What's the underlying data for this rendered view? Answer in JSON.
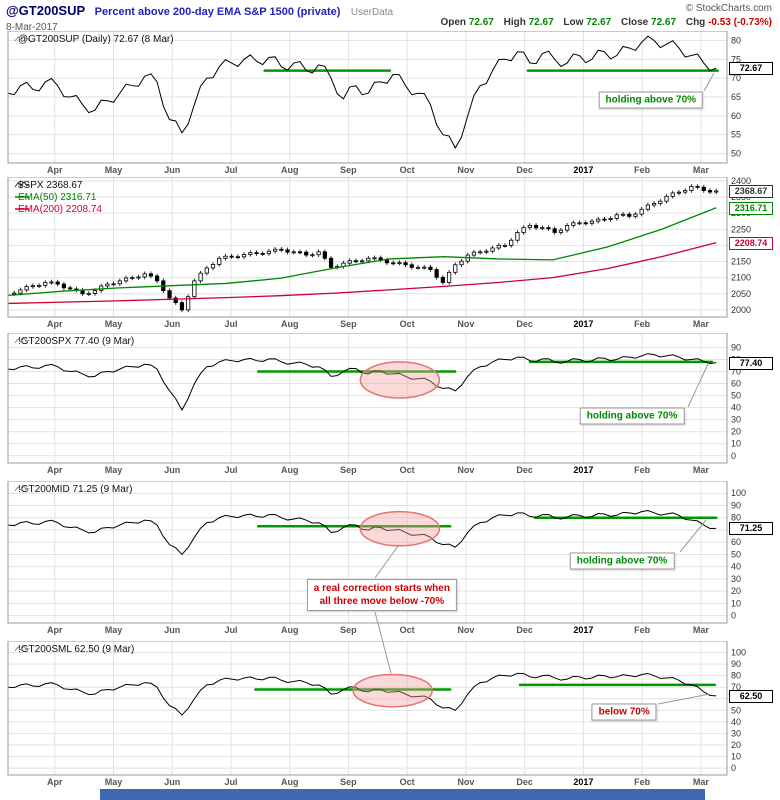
{
  "header": {
    "symbol": "@GT200SUP",
    "description": "Percent above 200-day EMA S&P 1500 (private)",
    "source_tag": "UserData",
    "copyright": "© StockCharts.com",
    "date": "8-Mar-2017",
    "quote": {
      "open_label": "Open",
      "open": "72.67",
      "high_label": "High",
      "high": "72.67",
      "low_label": "Low",
      "low": "72.67",
      "close_label": "Close",
      "close": "72.67",
      "chg_label": "Chg",
      "chg": "-0.53 (-0.73%)"
    }
  },
  "x_axis": {
    "labels": [
      "Apr",
      "May",
      "Jun",
      "Jul",
      "Aug",
      "Sep",
      "Oct",
      "Nov",
      "Dec",
      "2017",
      "Feb",
      "Mar"
    ],
    "bold_index": 9
  },
  "colors": {
    "support_green": "#009900",
    "anno_green": "#008800",
    "anno_red": "#cc0000",
    "ema50_green": "#008800",
    "ema200_red": "#cc0033",
    "series_black": "#000000",
    "grid": "#e2e2e2",
    "border": "#999999",
    "ellipse_fill": "#f4a0a0",
    "ellipse_stroke": "#e57373",
    "scrollbar_blue": "#3e68b2"
  },
  "chart_data": [
    {
      "type": "line",
      "title": "@GT200SUP (Daily) 72.67 (8 Mar)",
      "ylim": [
        47.5,
        82.5
      ],
      "yticks": [
        50,
        55,
        60,
        65,
        70,
        75,
        80
      ],
      "values": [
        66,
        68,
        67,
        69,
        68,
        65,
        63,
        61.5,
        64,
        66,
        68,
        70.5,
        69,
        59,
        55.5,
        63,
        70,
        73,
        74,
        75,
        74.5,
        75.5,
        73,
        74,
        72,
        73.5,
        70,
        64.5,
        68,
        66,
        69,
        71,
        68,
        66,
        63,
        55,
        51.5,
        60,
        68,
        72,
        75,
        77,
        74,
        76.5,
        75,
        74,
        76,
        75,
        77,
        76,
        78,
        79.5,
        80,
        79,
        78,
        76,
        74,
        72.67
      ],
      "support_lines": [
        {
          "x1": 0.357,
          "x2": 0.531,
          "y": 72
        },
        {
          "x1": 0.723,
          "x2": 0.987,
          "y": 72
        }
      ],
      "last_labels": [
        {
          "text": "72.67",
          "value": 72.67,
          "color": "#000000"
        }
      ],
      "annotations": [
        {
          "text": "holding above 70%",
          "color": "#008800",
          "fx": 0.894,
          "fy": 0.52
        }
      ]
    },
    {
      "type": "candle",
      "title": "$SPX 2368.67",
      "legend": [
        "EMA(50) 2316.71",
        "EMA(200) 2208.74"
      ],
      "ylim": [
        1978,
        2412
      ],
      "yticks": [
        2000,
        2050,
        2100,
        2150,
        2200,
        2250,
        2300,
        2350,
        2400
      ],
      "close": [
        2050,
        2062,
        2075,
        2085,
        2080,
        2065,
        2050,
        2060,
        2080,
        2090,
        2100,
        2112,
        2090,
        2037,
        2000,
        2090,
        2130,
        2160,
        2165,
        2172,
        2175,
        2182,
        2186,
        2180,
        2170,
        2180,
        2132,
        2145,
        2152,
        2160,
        2155,
        2145,
        2140,
        2132,
        2125,
        2085,
        2140,
        2170,
        2180,
        2192,
        2200,
        2240,
        2262,
        2255,
        2240,
        2262,
        2270,
        2275,
        2280,
        2295,
        2290,
        2312,
        2330,
        2352,
        2365,
        2383,
        2370,
        2368.67
      ],
      "ema50": [
        2045,
        2058,
        2068,
        2075,
        2082,
        2098,
        2130,
        2158,
        2165,
        2158,
        2155,
        2195,
        2250,
        2316.71
      ],
      "ema200": [
        2020,
        2024,
        2028,
        2033,
        2038,
        2044,
        2052,
        2062,
        2073,
        2085,
        2100,
        2128,
        2165,
        2208.74
      ],
      "last_labels": [
        {
          "text": "2368.67",
          "value": 2368.67,
          "color": "#333333"
        },
        {
          "text": "2316.71",
          "value": 2316.71,
          "color": "#008800"
        },
        {
          "text": "2208.74",
          "value": 2208.74,
          "color": "#cc0033"
        }
      ],
      "annotations": []
    },
    {
      "type": "line",
      "title": "!GT200SPX 77.40 (9 Mar)",
      "ylim": [
        -6,
        102
      ],
      "yticks": [
        0,
        10,
        20,
        30,
        40,
        50,
        60,
        70,
        80,
        90
      ],
      "values": [
        72,
        74,
        73,
        75,
        74,
        70,
        68,
        66,
        70,
        72,
        74,
        76,
        72,
        54,
        38,
        60,
        74,
        78,
        79,
        80,
        79,
        80.5,
        78,
        77,
        76,
        74,
        66,
        70,
        72.5,
        68,
        70.5,
        68,
        66,
        64,
        62,
        56,
        54,
        66,
        74,
        78,
        80,
        82,
        79,
        80.5,
        78,
        78.5,
        80,
        79,
        81,
        80,
        82,
        83,
        84,
        83,
        82,
        80,
        78.5,
        77.4
      ],
      "support_lines": [
        {
          "x1": 0.348,
          "x2": 0.622,
          "y": 70
        },
        {
          "x1": 0.726,
          "x2": 0.979,
          "y": 78
        }
      ],
      "ellipse": {
        "cx": 0.545,
        "cy": 63,
        "rx": 0.055,
        "ry": 15
      },
      "last_labels": [
        {
          "text": "77.40",
          "value": 77.4,
          "color": "#000000"
        }
      ],
      "annotations": [
        {
          "text": "holding above 70%",
          "color": "#008800",
          "fx": 0.868,
          "fy": 0.64
        }
      ]
    },
    {
      "type": "line",
      "title": "!GT200MID 71.25 (9 Mar)",
      "ylim": [
        -6,
        110
      ],
      "yticks": [
        0,
        10,
        20,
        30,
        40,
        50,
        60,
        70,
        80,
        90,
        100
      ],
      "values": [
        74,
        76,
        75,
        77,
        76,
        72,
        70,
        68,
        72,
        74,
        76,
        78,
        74,
        58,
        50,
        64,
        76,
        80,
        81,
        82,
        81,
        82.5,
        80,
        79,
        78,
        76,
        68,
        72,
        74,
        70,
        72,
        70,
        68,
        66,
        64,
        58,
        56,
        68,
        76,
        80,
        82,
        84,
        81,
        82.5,
        80,
        80.5,
        82,
        81,
        83,
        82,
        84,
        85,
        84,
        83,
        82,
        78,
        74,
        71.25
      ],
      "support_lines": [
        {
          "x1": 0.348,
          "x2": 0.615,
          "y": 73
        },
        {
          "x1": 0.733,
          "x2": 0.985,
          "y": 80
        }
      ],
      "ellipse": {
        "cx": 0.545,
        "cy": 71,
        "rx": 0.055,
        "ry": 14
      },
      "last_labels": [
        {
          "text": "71.25",
          "value": 71.25,
          "color": "#000000"
        }
      ],
      "annotations": [
        {
          "text": "holding above 70%",
          "color": "#008800",
          "fx": 0.854,
          "fy": 0.56
        },
        {
          "lines": [
            "a real correction starts when",
            "all three move below -70%"
          ],
          "color": "#cc0000",
          "fx": 0.52,
          "fy": 0.8
        }
      ]
    },
    {
      "type": "line",
      "title": "!GT200SML 62.50 (9 Mar)",
      "ylim": [
        -6,
        110
      ],
      "yticks": [
        0,
        10,
        20,
        30,
        40,
        50,
        60,
        70,
        80,
        90,
        100
      ],
      "values": [
        70,
        72,
        71,
        73,
        72,
        68,
        66,
        64,
        68,
        70,
        72,
        74,
        70,
        54,
        46,
        60,
        72,
        76,
        77,
        78,
        77,
        78.5,
        76,
        75,
        74,
        72,
        64,
        68,
        70,
        66,
        68,
        66,
        64,
        62,
        60,
        52,
        50,
        64,
        74,
        78,
        80,
        82,
        79,
        80,
        78,
        77,
        79,
        78,
        80,
        79,
        80,
        81,
        80,
        78,
        76,
        72,
        66,
        62.5
      ],
      "support_lines": [
        {
          "x1": 0.344,
          "x2": 0.615,
          "y": 68
        },
        {
          "x1": 0.712,
          "x2": 0.983,
          "y": 72
        }
      ],
      "ellipse": {
        "cx": 0.535,
        "cy": 67,
        "rx": 0.055,
        "ry": 14
      },
      "last_labels": [
        {
          "text": "62.50",
          "value": 62.5,
          "color": "#000000"
        }
      ],
      "annotations": [
        {
          "text": "below 70%",
          "color": "#cc0000",
          "fx": 0.857,
          "fy": 0.53
        }
      ]
    }
  ]
}
